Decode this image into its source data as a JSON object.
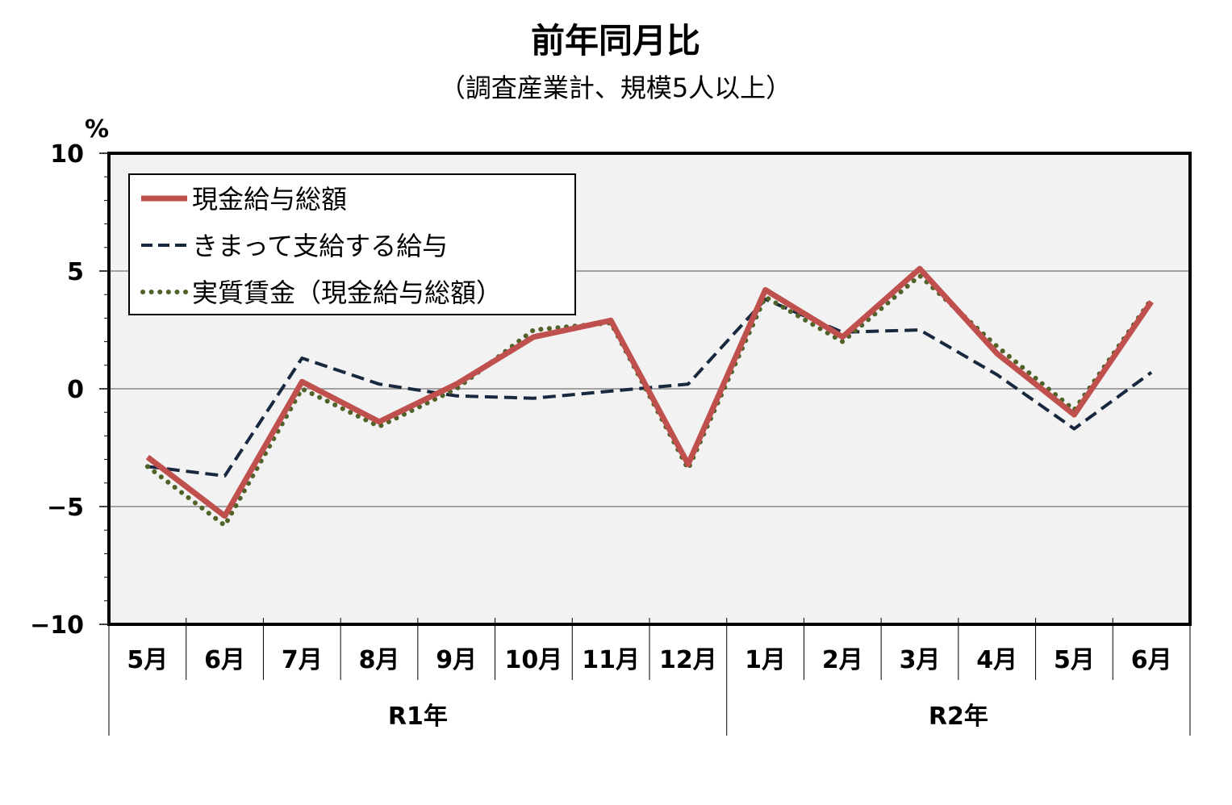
{
  "chart_data": {
    "type": "line",
    "title": "前年同月比",
    "subtitle": "（調査産業計、規模5人以上）",
    "ylabel": "%",
    "ylim": [
      -10,
      10
    ],
    "yticks": [
      "10",
      "5",
      "0",
      "−5",
      "−10"
    ],
    "categories": [
      "5月",
      "6月",
      "7月",
      "8月",
      "9月",
      "10月",
      "11月",
      "12月",
      "1月",
      "2月",
      "3月",
      "4月",
      "5月",
      "6月"
    ],
    "groups": [
      {
        "label": "R1年",
        "span": 8
      },
      {
        "label": "R2年",
        "span": 6
      }
    ],
    "grid": true,
    "legend_position": "top-left",
    "series": [
      {
        "name": "現金給与総額",
        "style": "solid",
        "color": "#c0504d",
        "values": [
          -2.9,
          -5.4,
          0.3,
          -1.4,
          0.2,
          2.2,
          2.9,
          -3.2,
          4.2,
          2.2,
          5.1,
          1.5,
          -1.1,
          3.7
        ]
      },
      {
        "name": "きまって支給する給与",
        "style": "dashed",
        "color": "#17283f",
        "values": [
          -3.3,
          -3.7,
          1.3,
          0.2,
          -0.3,
          -0.4,
          -0.1,
          0.2,
          3.8,
          2.4,
          2.5,
          0.6,
          -1.7,
          0.7
        ]
      },
      {
        "name": "実質賃金（現金給与総額）",
        "style": "dotted",
        "color": "#4f6228",
        "values": [
          -3.3,
          -5.8,
          0.0,
          -1.6,
          0.0,
          2.5,
          2.8,
          -3.4,
          3.9,
          2.0,
          4.8,
          1.8,
          -0.9,
          3.8
        ]
      }
    ]
  }
}
